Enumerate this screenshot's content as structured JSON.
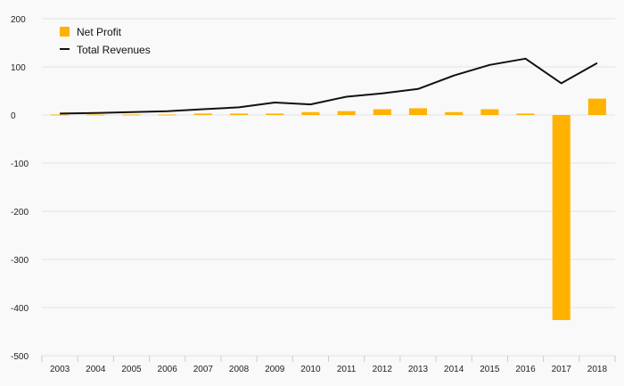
{
  "chart_data": {
    "type": "bar",
    "x": [
      "2003",
      "2004",
      "2005",
      "2006",
      "2007",
      "2008",
      "2009",
      "2010",
      "2011",
      "2012",
      "2013",
      "2014",
      "2015",
      "2016",
      "2017",
      "2018"
    ],
    "series": [
      {
        "name": "Net Profit",
        "type": "bar",
        "values": [
          1,
          1,
          1,
          1,
          3,
          3,
          3,
          6,
          8,
          12,
          14,
          6,
          12,
          3,
          -426,
          34
        ]
      },
      {
        "name": "Total Revenues",
        "type": "line",
        "values": [
          3,
          4,
          6,
          8,
          12,
          16,
          26,
          22,
          38,
          45,
          54,
          82,
          104,
          117,
          66,
          108
        ]
      }
    ],
    "ylim": [
      -500,
      200
    ],
    "yticks": [
      "200",
      "100",
      "0",
      "-100",
      "-200",
      "-300",
      "-400",
      "-500"
    ],
    "legend_position": "top-left",
    "grid": true
  },
  "colors": {
    "bar": "#ffb300",
    "line": "#111111",
    "grid": "#e3e3e3",
    "background": "#f9f9f9"
  }
}
